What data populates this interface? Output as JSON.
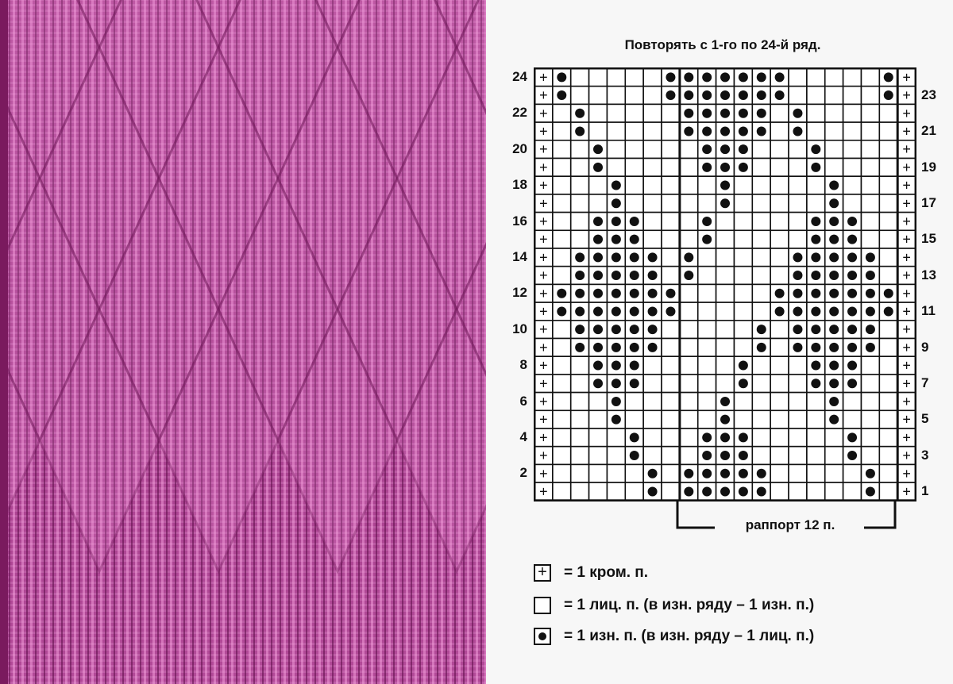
{
  "title": "Повторять с 1-го по 24-й ряд.",
  "chart_data": {
    "type": "knitting-chart",
    "columns": 21,
    "legend_symbols": {
      "+": "edge",
      "o": "purl",
      ".": "knit"
    },
    "rows": {
      "24": "+o.....ooooooo.....o+",
      "23": "+o.....ooooooo.....o+",
      "22": "+.o.....ooooo.o.....+",
      "21": "+.o.....ooooo.o.....+",
      "20": "+..o.....ooo...o....+",
      "19": "+..o.....ooo...o....+",
      "18": "+...o.....o.....o...+",
      "17": "+...o.....o.....o...+",
      "16": "+..ooo...o.....ooo..+",
      "15": "+..ooo...o.....ooo..+",
      "14": "+.ooooo.o.....ooooo.+",
      "13": "+.ooooo.o.....ooooo.+",
      "12": "+ooooooo.....ooooooo+",
      "11": "+ooooooo.....ooooooo+",
      "10": "+.ooooo.....o.ooooo.+",
      "9": "+.ooooo.....o.ooooo.+",
      "8": "+..ooo.....o...ooo..+",
      "7": "+..ooo.....o...ooo..+",
      "6": "+...o.....o.....o...+",
      "5": "+...o.....o.....o...+",
      "4": "+....o...ooo.....o..+",
      "3": "+....o...ooo.....o..+",
      "2": "+.....o.ooooo.....o.+",
      "1": "+.....o.ooooo.....o.+"
    },
    "left_labels": [
      "24",
      "22",
      "20",
      "18",
      "16",
      "14",
      "12",
      "10",
      "8",
      "6",
      "4",
      "2"
    ],
    "right_labels": [
      "23",
      "21",
      "19",
      "17",
      "15",
      "13",
      "11",
      "9",
      "7",
      "5",
      "3",
      "1"
    ]
  },
  "rapport_label": "раппорт 12 п.",
  "legend": [
    {
      "symbol": "+",
      "text": "= 1 кром. п."
    },
    {
      "symbol": "empty",
      "text": "= 1 лиц. п. (в изн. ряду – 1 изн. п.)"
    },
    {
      "symbol": "dot",
      "text": "= 1 изн. п. (в изн. ряду – 1 лиц. п.)"
    }
  ],
  "colors": {
    "yarn": "#b24a98",
    "yarn_dark": "#7a1a5e",
    "ink": "#111111"
  }
}
